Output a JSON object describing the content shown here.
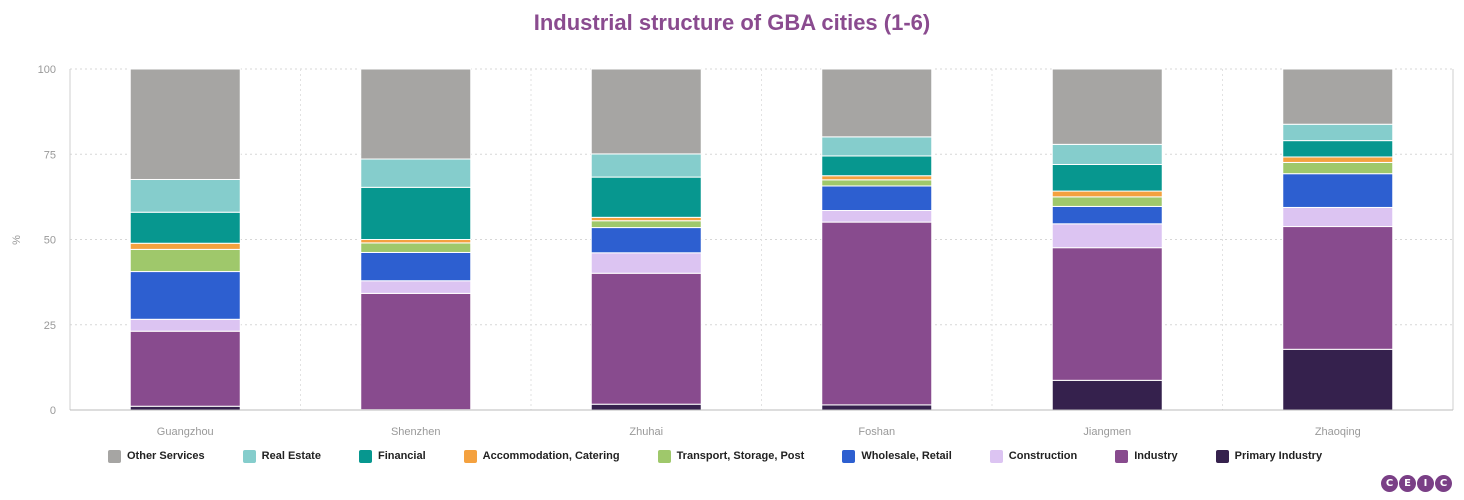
{
  "chart_data": {
    "type": "bar",
    "stacked": true,
    "title": "Industrial structure of GBA cities (1-6)",
    "ylabel": "%",
    "ylim": [
      0,
      100
    ],
    "yticks": [
      "0",
      "25",
      "50",
      "75",
      "100"
    ],
    "grid": true,
    "legend_position": "bottom",
    "categories": [
      "Guangzhou",
      "Shenzhen",
      "Zhuhai",
      "Foshan",
      "Jiangmen",
      "Zhaoqing"
    ],
    "series": [
      {
        "name": "Primary Industry",
        "color": "#35214d",
        "values": [
          1.1,
          0.1,
          1.7,
          1.5,
          8.7,
          17.8
        ]
      },
      {
        "name": "Industry",
        "color": "#884b8e",
        "values": [
          22.0,
          34.1,
          38.4,
          53.6,
          38.9,
          36.0
        ]
      },
      {
        "name": "Construction",
        "color": "#dcc4f2",
        "values": [
          3.5,
          3.7,
          6.0,
          3.4,
          7.0,
          5.6
        ]
      },
      {
        "name": "Wholesale, Retail",
        "color": "#2d5fd0",
        "values": [
          14.0,
          8.3,
          7.4,
          7.2,
          5.1,
          9.9
        ]
      },
      {
        "name": "Transport, Storage, Post",
        "color": "#9fc86b",
        "values": [
          6.5,
          2.8,
          2.0,
          1.8,
          2.8,
          3.3
        ]
      },
      {
        "name": "Accommodation, Catering",
        "color": "#f4a13f",
        "values": [
          1.8,
          1.0,
          1.0,
          1.2,
          1.7,
          1.6
        ]
      },
      {
        "name": "Financial",
        "color": "#07978f",
        "values": [
          9.1,
          15.3,
          11.8,
          5.8,
          7.8,
          4.8
        ]
      },
      {
        "name": "Real Estate",
        "color": "#85cdcc",
        "values": [
          9.6,
          8.3,
          6.8,
          5.6,
          5.9,
          4.8
        ]
      },
      {
        "name": "Other Services",
        "color": "#a6a5a3",
        "values": [
          32.4,
          26.4,
          24.9,
          19.9,
          22.1,
          16.2
        ]
      }
    ]
  },
  "legend_order": [
    "Other Services",
    "Real Estate",
    "Financial",
    "Accommodation, Catering",
    "Transport, Storage, Post",
    "Wholesale, Retail",
    "Construction",
    "Industry",
    "Primary Industry"
  ],
  "logo": {
    "letters": [
      "C",
      "E",
      "I",
      "C"
    ],
    "color": "#7a3f86"
  }
}
